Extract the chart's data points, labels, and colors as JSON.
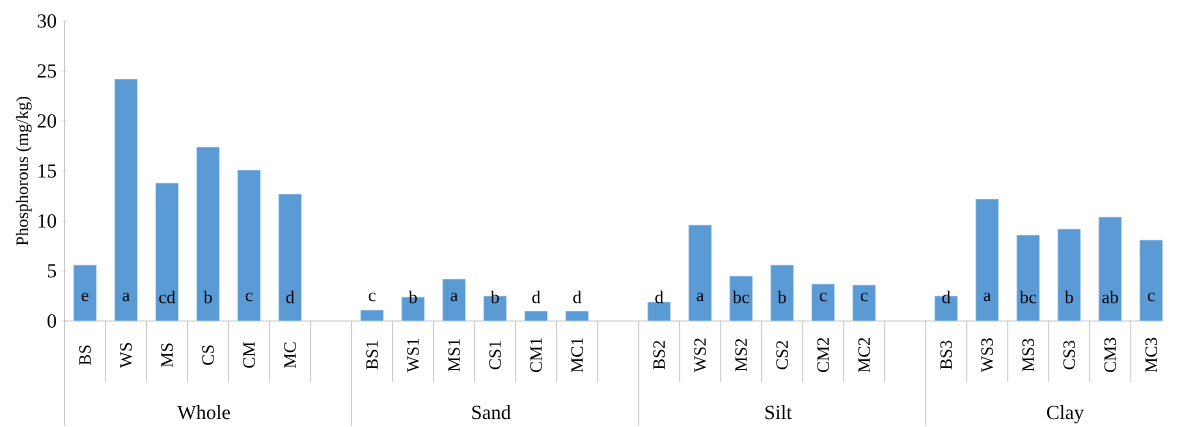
{
  "chart_data": {
    "type": "bar",
    "ylabel": "Phosphorous (mg/kg)",
    "categories": [
      "BS",
      "WS",
      "MS",
      "CS",
      "CM",
      "MC",
      null,
      "BS1",
      "WS1",
      "MS1",
      "CS1",
      "CM1",
      "MC1",
      null,
      "BS2",
      "WS2",
      "MS2",
      "CS2",
      "CM2",
      "MC2",
      null,
      "BS3",
      "WS3",
      "MS3",
      "CS3",
      "CM3",
      "MC3"
    ],
    "values": [
      5.6,
      24.2,
      13.8,
      17.4,
      15.1,
      12.7,
      null,
      1.1,
      2.4,
      4.2,
      2.5,
      1.0,
      1.0,
      null,
      1.9,
      9.6,
      4.5,
      5.6,
      3.7,
      3.6,
      null,
      2.5,
      12.2,
      8.6,
      9.2,
      10.4,
      8.1
    ],
    "value_labels": [
      "e",
      "a",
      "cd",
      "b",
      "c",
      "d",
      null,
      "c",
      "b",
      "a",
      "b",
      "d",
      "d",
      null,
      "d",
      "a",
      "bc",
      "b",
      "c",
      "c",
      null,
      "d",
      "a",
      "bc",
      "b",
      "ab",
      "c"
    ],
    "color": "#5b9bd5",
    "ylim": [
      0,
      30
    ],
    "yticks": [
      0,
      5,
      10,
      15,
      20,
      25,
      30
    ],
    "annotations": [
      "Whole",
      "Sand",
      "Silt",
      "Clay"
    ]
  }
}
